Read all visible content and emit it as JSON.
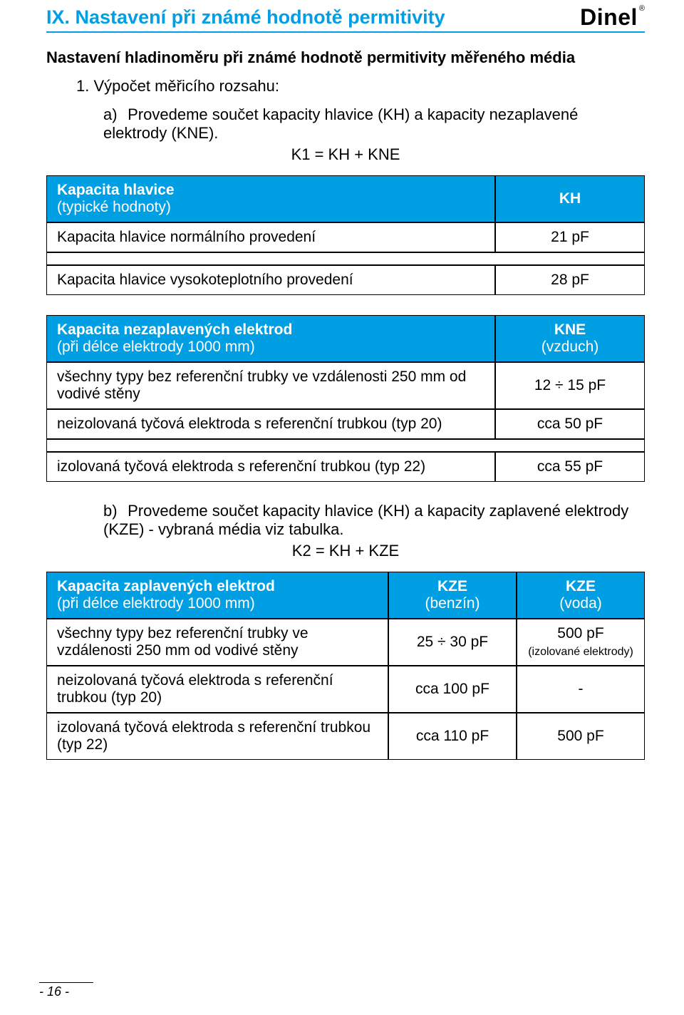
{
  "header": {
    "section_title": "IX. Nastavení při známé hodnotě permitivity",
    "logo_text": "Dinel",
    "logo_r": "®"
  },
  "intro": "Nastavení hladinoměru při známé hodnotě permitivity měřeného média",
  "item1": {
    "num": "1.",
    "text": "Výpočet měřicího rozsahu:"
  },
  "sub_a": {
    "label": "a)",
    "text": "Provedeme součet kapacity hlavice (KH) a kapacity nezaplavené elektrody (KNE).",
    "formula": "K1 = KH + KNE"
  },
  "table1": {
    "header_left_line1": "Kapacita hlavice",
    "header_left_line2": "(typické hodnoty)",
    "header_right": "KH",
    "rows": [
      {
        "label": "Kapacita hlavice normálního provedení",
        "value": "21 pF"
      },
      {
        "label": "Kapacita hlavice vysokoteplotního provedení",
        "value": "28 pF"
      }
    ]
  },
  "table2": {
    "header_left_line1": "Kapacita nezaplavených elektrod",
    "header_left_line2": "(při délce elektrody 1000 mm)",
    "header_right_line1": "KNE",
    "header_right_line2": "(vzduch)",
    "rows": [
      {
        "label": "všechny typy bez referenční trubky ve vzdálenosti 250 mm od vodivé stěny",
        "value": "12 ÷ 15 pF"
      },
      {
        "label": "neizolovaná tyčová elektroda s referenční trubkou (typ 20)",
        "value": "cca 50 pF"
      },
      {
        "label": "izolovaná tyčová elektroda s referenční trubkou (typ 22)",
        "value": "cca 55 pF"
      }
    ]
  },
  "sub_b": {
    "label": "b)",
    "text": "Provedeme součet kapacity hlavice (KH) a kapacity zaplavené elektrody (KZE) - vybraná média viz tabulka.",
    "formula": "K2 = KH + KZE"
  },
  "table3": {
    "header_left_line1": "Kapacita zaplavených elektrod",
    "header_left_line2": "(při délce elektrody 1000 mm)",
    "header_c1_line1": "KZE",
    "header_c1_line2": "(benzín)",
    "header_c2_line1": "KZE",
    "header_c2_line2": "(voda)",
    "rows": [
      {
        "label": "všechny typy bez referenční trubky ve vzdálenosti 250 mm od vodivé stěny",
        "v1": "25 ÷ 30 pF",
        "v2": "500 pF",
        "v2_note": "(izolované elektrody)"
      },
      {
        "label": "neizolovaná tyčová elektroda s referenční trubkou (typ 20)",
        "v1": "cca 100 pF",
        "v2": "-"
      },
      {
        "label": "izolovaná tyčová elektroda s referenční trubkou (typ 22)",
        "v1": "cca 110 pF",
        "v2": "500 pF"
      }
    ]
  },
  "footer": "- 16 -"
}
